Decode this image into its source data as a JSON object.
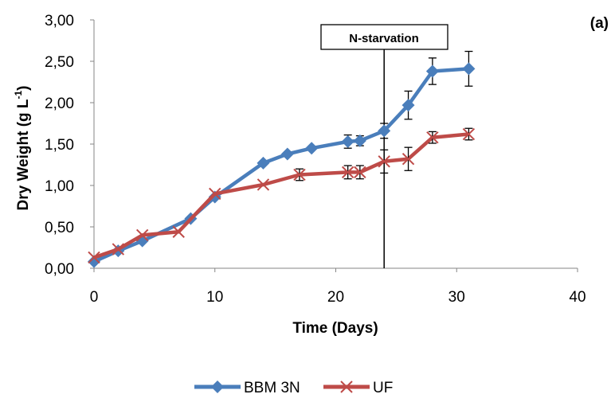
{
  "chart_data": {
    "type": "line",
    "panel_label": "(a)",
    "xlabel": "Time (Days)",
    "ylabel_main": "Dry Weight (g L",
    "ylabel_sup": "-1",
    "ylabel_close": ")",
    "xlim": [
      0,
      40
    ],
    "ylim": [
      0,
      3
    ],
    "x_ticks": [
      "0",
      "10",
      "20",
      "30",
      "40"
    ],
    "x_tick_values": [
      0,
      10,
      20,
      30,
      40
    ],
    "y_ticks": [
      "0,00",
      "0,50",
      "1,00",
      "1,50",
      "2,00",
      "2,50",
      "3,00"
    ],
    "y_tick_values": [
      0,
      0.5,
      1,
      1.5,
      2,
      2.5,
      3
    ],
    "grid": false,
    "legend_position": "bottom",
    "annotation": {
      "label": "N-starvation",
      "x": 24
    },
    "series": [
      {
        "name": "BBM 3N",
        "color": "#4A7EBB",
        "marker": "diamond",
        "x": [
          0,
          2,
          4,
          8,
          10,
          14,
          16,
          18,
          21,
          22,
          24,
          26,
          28,
          31
        ],
        "y": [
          0.08,
          0.21,
          0.33,
          0.6,
          0.86,
          1.27,
          1.38,
          1.45,
          1.53,
          1.54,
          1.66,
          1.97,
          2.38,
          2.41
        ],
        "err": [
          0,
          0,
          0,
          0,
          0,
          0,
          0,
          0,
          0.08,
          0.06,
          0.09,
          0.17,
          0.16,
          0.21
        ]
      },
      {
        "name": "UF",
        "color": "#BE4B48",
        "marker": "x",
        "x": [
          0,
          2,
          4,
          7,
          10,
          14,
          17,
          21,
          22,
          24,
          26,
          28,
          31
        ],
        "y": [
          0.13,
          0.23,
          0.4,
          0.44,
          0.9,
          1.01,
          1.13,
          1.16,
          1.16,
          1.29,
          1.32,
          1.58,
          1.62
        ],
        "err": [
          0,
          0,
          0,
          0,
          0,
          0,
          0.07,
          0.08,
          0.08,
          0.14,
          0.14,
          0.07,
          0.07
        ]
      }
    ]
  }
}
